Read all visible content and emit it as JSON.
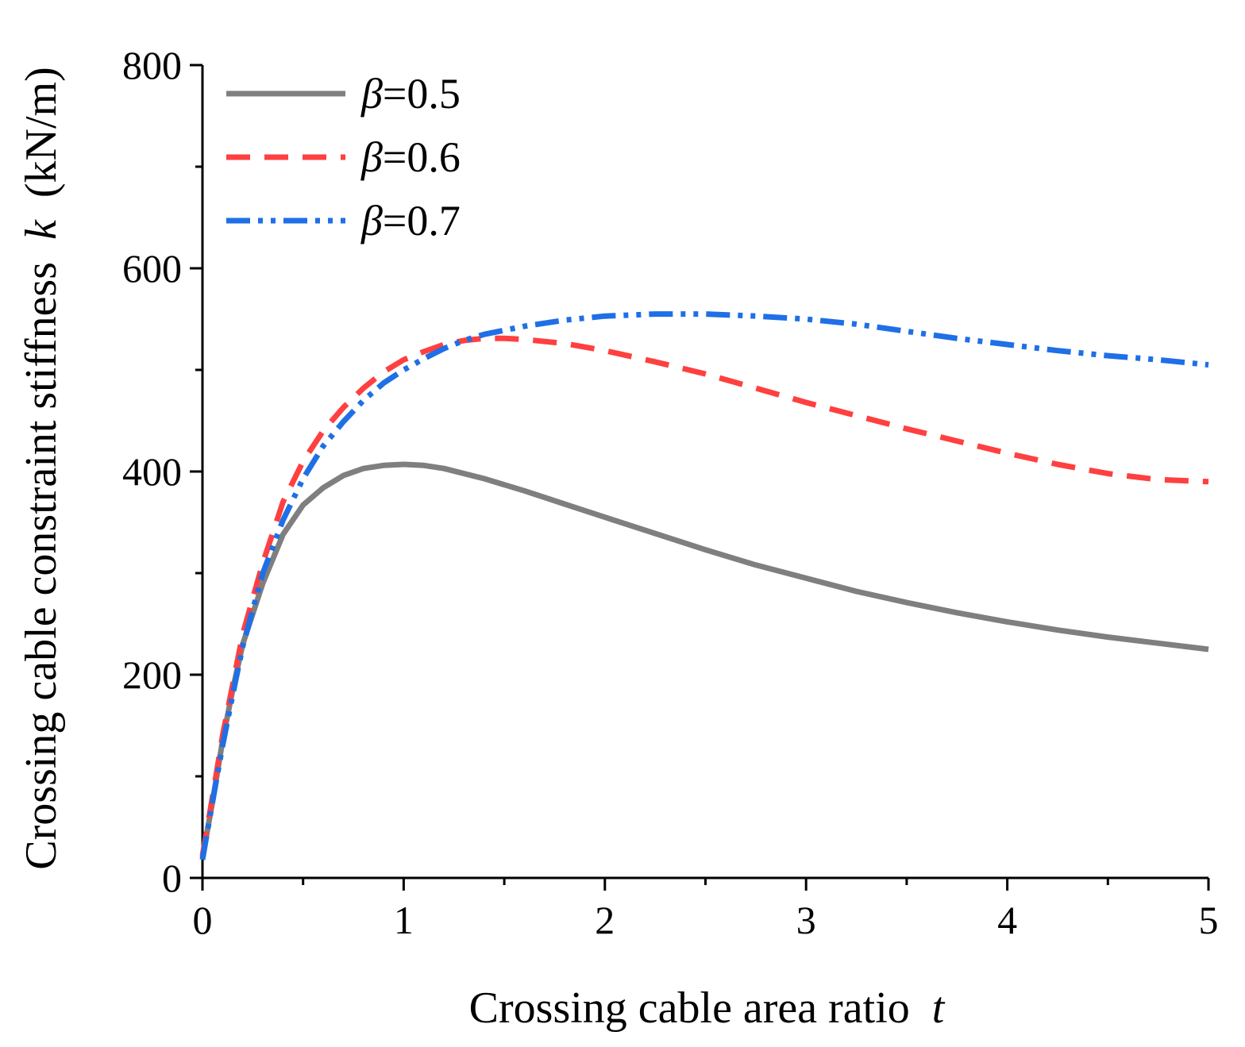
{
  "chart_data": {
    "type": "line",
    "xlabel": "Crossing cable area ratio",
    "xlabel_var": "t",
    "ylabel": "Crossing cable constraint stiffness",
    "ylabel_var": "k",
    "ylabel_unit": "(kN/m)",
    "xlim": [
      0,
      5
    ],
    "ylim": [
      0,
      800
    ],
    "x_ticks": [
      0,
      1,
      2,
      3,
      4,
      5
    ],
    "y_ticks": [
      0,
      200,
      400,
      600,
      800
    ],
    "x_tick_labels": [
      "0",
      "1",
      "2",
      "3",
      "4",
      "5"
    ],
    "y_tick_labels": [
      "0",
      "200",
      "400",
      "600",
      "800"
    ],
    "grid": false,
    "legend_position": "top-left",
    "series": [
      {
        "name": "=0.5",
        "symbol": "β",
        "color": "#7f7f7f",
        "style": "solid",
        "x": [
          0,
          0.05,
          0.1,
          0.15,
          0.2,
          0.3,
          0.4,
          0.5,
          0.6,
          0.7,
          0.8,
          0.9,
          1.0,
          1.1,
          1.2,
          1.4,
          1.6,
          1.8,
          2.0,
          2.25,
          2.5,
          2.75,
          3.0,
          3.25,
          3.5,
          3.75,
          4.0,
          4.25,
          4.5,
          4.75,
          5.0
        ],
        "values": [
          20,
          75,
          135,
          185,
          230,
          290,
          338,
          367,
          384,
          396,
          403,
          406,
          407,
          406,
          403,
          393,
          381,
          368,
          355,
          339,
          323,
          308,
          295,
          282,
          271,
          261,
          252,
          244,
          237,
          231,
          225
        ]
      },
      {
        "name": "=0.6",
        "symbol": "β",
        "color": "#ff4040",
        "style": "dashed",
        "x": [
          0,
          0.05,
          0.1,
          0.15,
          0.2,
          0.3,
          0.4,
          0.5,
          0.6,
          0.7,
          0.8,
          0.9,
          1.0,
          1.1,
          1.2,
          1.3,
          1.4,
          1.5,
          1.6,
          1.8,
          2.0,
          2.25,
          2.5,
          2.75,
          3.0,
          3.25,
          3.5,
          3.75,
          4.0,
          4.25,
          4.5,
          4.75,
          5.0
        ],
        "values": [
          22,
          80,
          140,
          190,
          240,
          310,
          370,
          410,
          440,
          463,
          482,
          498,
          510,
          518,
          525,
          529,
          531,
          531,
          530,
          526,
          519,
          508,
          496,
          482,
          468,
          455,
          442,
          430,
          418,
          407,
          398,
          392,
          390
        ]
      },
      {
        "name": "=0.7",
        "symbol": "β",
        "color": "#1f6fe6",
        "style": "dashdotdot",
        "x": [
          0,
          0.05,
          0.1,
          0.15,
          0.2,
          0.3,
          0.4,
          0.5,
          0.6,
          0.7,
          0.8,
          0.9,
          1.0,
          1.1,
          1.2,
          1.3,
          1.4,
          1.6,
          1.8,
          2.0,
          2.25,
          2.5,
          2.75,
          3.0,
          3.25,
          3.5,
          3.75,
          4.0,
          4.25,
          4.5,
          4.75,
          5.0
        ],
        "values": [
          18,
          75,
          130,
          180,
          228,
          300,
          352,
          393,
          425,
          449,
          470,
          487,
          500,
          511,
          521,
          529,
          535,
          543,
          549,
          553,
          555,
          555,
          553,
          550,
          545,
          538,
          531,
          525,
          519,
          514,
          510,
          505
        ]
      }
    ]
  }
}
